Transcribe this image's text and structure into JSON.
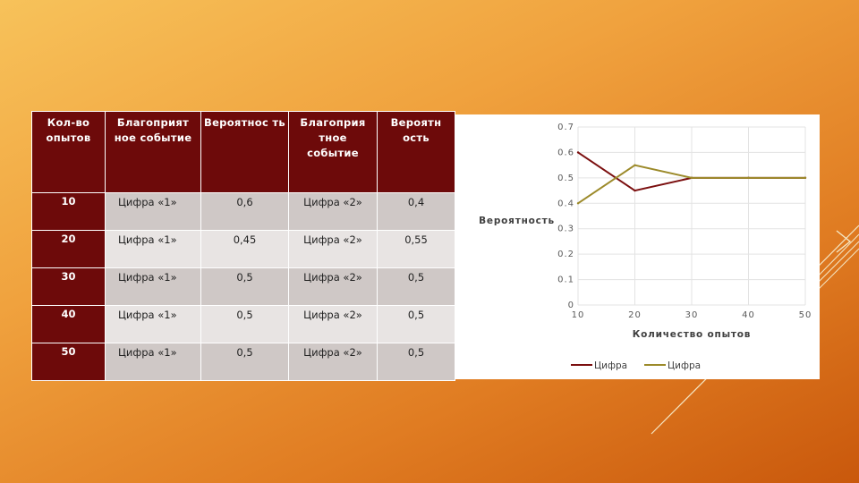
{
  "table": {
    "headers": [
      "Кол-во опытов",
      "Благоприят ное событие",
      "Вероятнос ть",
      "Благоприя тное событие",
      "Вероятн ость"
    ],
    "rows": [
      [
        "10",
        "Цифра «1»",
        "0,6",
        "Цифра «2»",
        "0,4"
      ],
      [
        "20",
        "Цифра «1»",
        "0,45",
        "Цифра «2»",
        "0,55"
      ],
      [
        "30",
        "Цифра «1»",
        "0,5",
        "Цифра «2»",
        "0,5"
      ],
      [
        "40",
        "Цифра «1»",
        "0,5",
        "Цифра «2»",
        "0,5"
      ],
      [
        "50",
        "Цифра «1»",
        "0,5",
        "Цифра «2»",
        "0,5"
      ]
    ]
  },
  "chart_data": {
    "type": "line",
    "x": [
      10,
      20,
      30,
      40,
      50
    ],
    "series": [
      {
        "name": "Цифра",
        "values": [
          0.6,
          0.45,
          0.5,
          0.5,
          0.5
        ],
        "color": "#7b0f0f"
      },
      {
        "name": "Цифра",
        "values": [
          0.4,
          0.55,
          0.5,
          0.5,
          0.5
        ],
        "color": "#9c8a2a"
      }
    ],
    "x_ticks": [
      "10",
      "20",
      "30",
      "40",
      "50"
    ],
    "y_ticks": [
      "0",
      "0.1",
      "0.2",
      "0.3",
      "0.4",
      "0.5",
      "0.6",
      "0.7"
    ],
    "ylim": [
      0,
      0.7
    ],
    "xlabel": "Количество опытов",
    "ylabel": "Вероятность",
    "grid": true,
    "legend": "bottom"
  }
}
